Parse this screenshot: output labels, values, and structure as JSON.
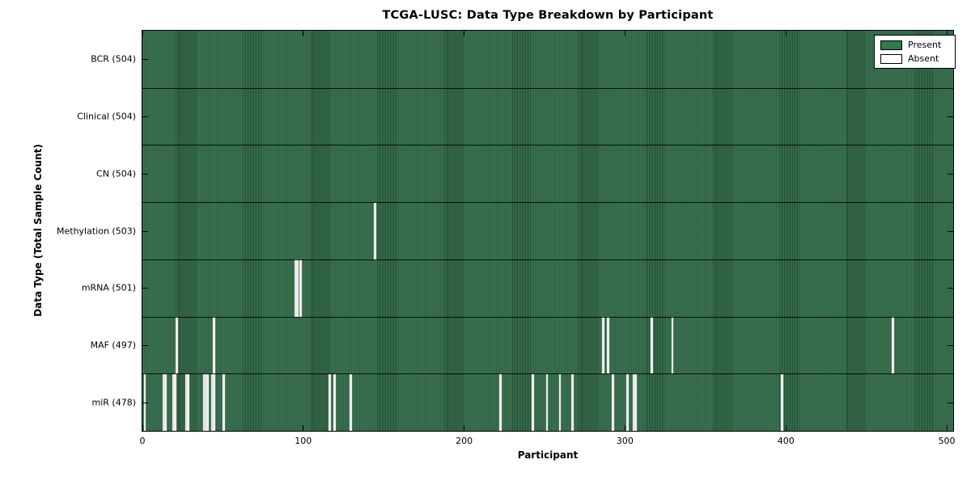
{
  "title": "TCGA-LUSC: Data Type Breakdown by Participant",
  "chart_data": {
    "type": "heatmap",
    "title": "TCGA-LUSC: Data Type Breakdown by Participant",
    "xlabel": "Participant",
    "ylabel": "Data Type (Total Sample Count)",
    "x_range": [
      0,
      504
    ],
    "x_ticks": [
      0,
      100,
      200,
      300,
      400,
      500
    ],
    "n_participants": 504,
    "grid": false,
    "legend_position": "upper-right",
    "legend": [
      {
        "label": "Present",
        "color": "#2f7a4e"
      },
      {
        "label": "Absent",
        "color": "#ffffff"
      }
    ],
    "colors": {
      "present_fill": "#35714d",
      "absent_fill": "#eeeeee",
      "cell_edge": "#1d4631",
      "frame": "#000000"
    },
    "rows": [
      {
        "data_type": "BCR",
        "label": "BCR (504)",
        "present_count": 504,
        "absent_participants": []
      },
      {
        "data_type": "Clinical",
        "label": "Clinical (504)",
        "present_count": 504,
        "absent_participants": []
      },
      {
        "data_type": "CN",
        "label": "CN (504)",
        "present_count": 504,
        "absent_participants": []
      },
      {
        "data_type": "Methylation",
        "label": "Methylation (503)",
        "present_count": 503,
        "absent_participants": [
          144
        ]
      },
      {
        "data_type": "mRNA",
        "label": "mRNA (501)",
        "present_count": 501,
        "absent_participants": [
          95,
          96,
          98
        ]
      },
      {
        "data_type": "MAF",
        "label": "MAF (497)",
        "present_count": 497,
        "absent_participants": [
          21,
          44,
          286,
          289,
          316,
          329,
          466
        ]
      },
      {
        "data_type": "miR",
        "label": "miR (478)",
        "present_count": 478,
        "absent_participants": [
          1,
          13,
          14,
          19,
          20,
          27,
          28,
          38,
          39,
          40,
          43,
          44,
          50,
          116,
          119,
          129,
          222,
          242,
          251,
          259,
          267,
          292,
          301,
          305,
          306,
          397
        ]
      }
    ]
  }
}
